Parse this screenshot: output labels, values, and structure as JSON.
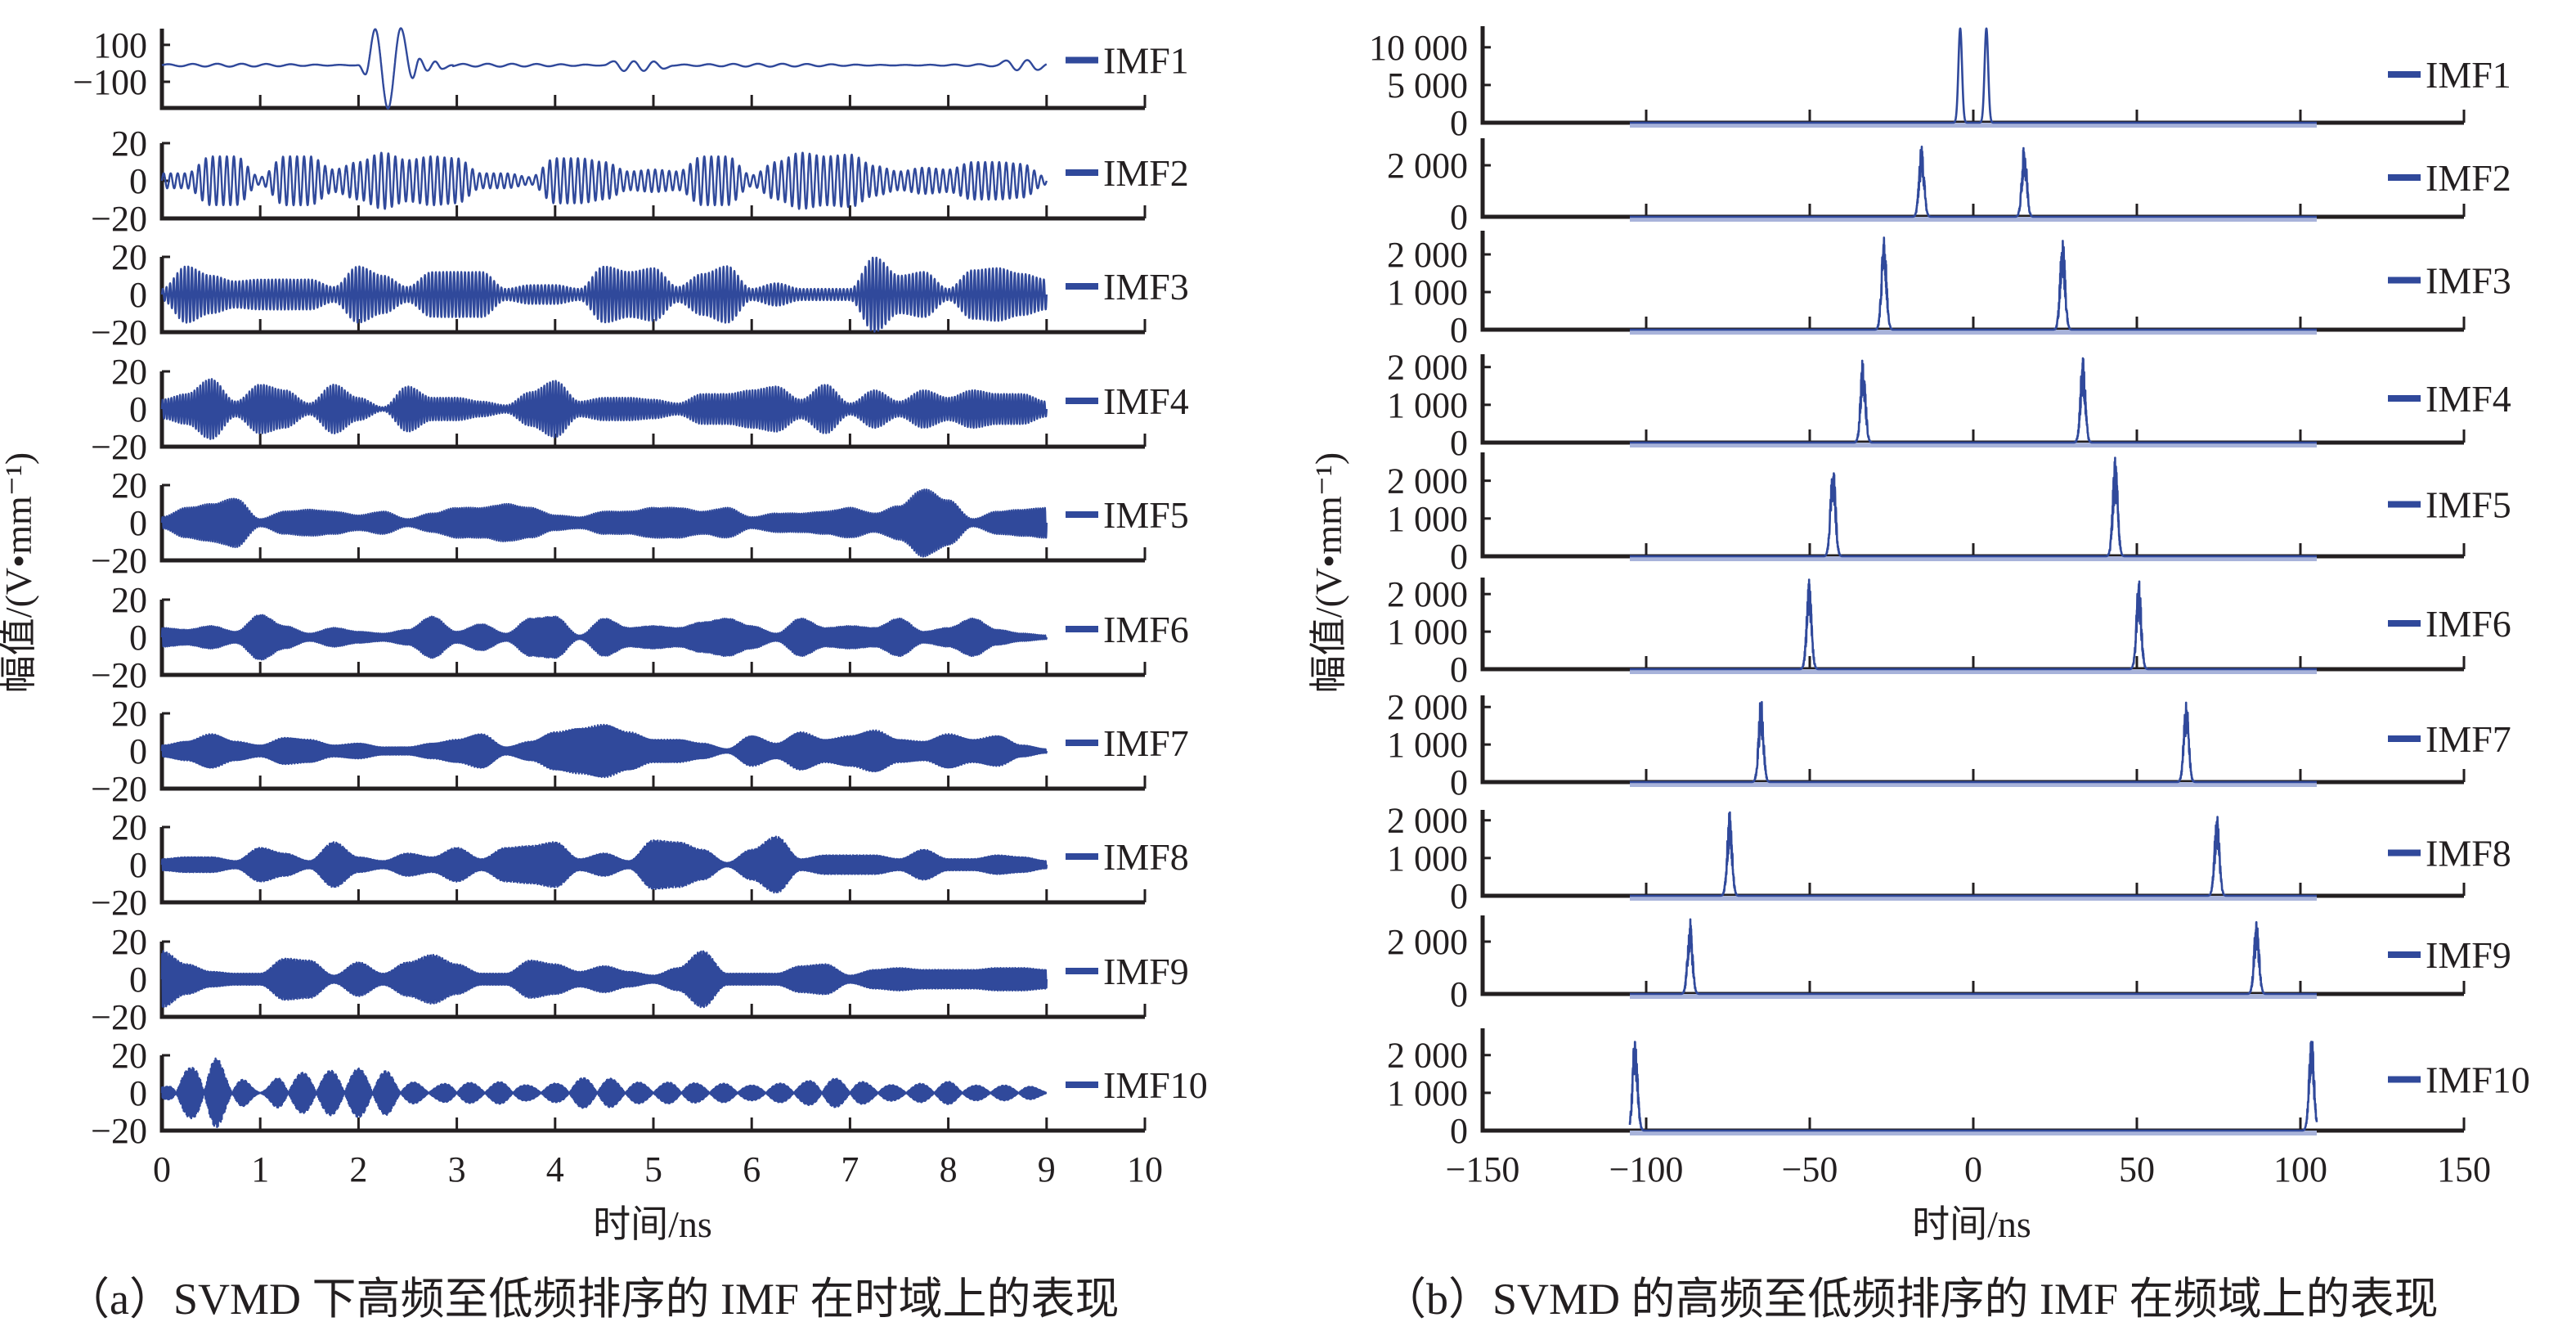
{
  "line_color": "#30499b",
  "band_color": "#a8b3da",
  "chart_data": [
    {
      "type": "line",
      "caption": "（a）SVMD 下高频至低频排序的 IMF 在时域上的表现",
      "xlabel": "时间/ns",
      "ylabel": "幅值/(V•mm⁻¹)",
      "xlim": [
        0,
        10
      ],
      "xticks": [
        {
          "v": 0,
          "label": "0"
        },
        {
          "v": 1,
          "label": "1"
        },
        {
          "v": 2,
          "label": "2"
        },
        {
          "v": 3,
          "label": "3"
        },
        {
          "v": 4,
          "label": "4"
        },
        {
          "v": 5,
          "label": "5"
        },
        {
          "v": 6,
          "label": "6"
        },
        {
          "v": 7,
          "label": "7"
        },
        {
          "v": 8,
          "label": "8"
        },
        {
          "v": 9,
          "label": "9"
        },
        {
          "v": 10,
          "label": "10"
        }
      ],
      "signal_span_ns": [
        0,
        9
      ],
      "envelope_step_ns": 0.25,
      "series": [
        {
          "name": "IMF1",
          "ylim": [
            -242,
            188
          ],
          "yticks": [
            {
              "v": 100,
              "label": "100"
            },
            {
              "v": -100,
              "label": "−100"
            }
          ],
          "ripple_amplitude": 8,
          "ripple_cycles_per_ns": 4,
          "keypoints": [
            [
              0,
              -10
            ],
            [
              2.0,
              -10
            ],
            [
              2.07,
              -60
            ],
            [
              2.17,
              185
            ],
            [
              2.3,
              -245
            ],
            [
              2.43,
              190
            ],
            [
              2.55,
              -80
            ],
            [
              2.62,
              25
            ],
            [
              2.7,
              -40
            ],
            [
              2.78,
              10
            ],
            [
              2.85,
              -30
            ],
            [
              2.95,
              -10
            ],
            [
              4.5,
              -10
            ],
            [
              4.6,
              10
            ],
            [
              4.7,
              -40
            ],
            [
              4.8,
              10
            ],
            [
              4.9,
              -40
            ],
            [
              5.0,
              10
            ],
            [
              5.1,
              -30
            ],
            [
              5.2,
              -10
            ],
            [
              8.5,
              -10
            ],
            [
              8.6,
              10
            ],
            [
              8.7,
              -30
            ],
            [
              8.8,
              10
            ],
            [
              8.9,
              -30
            ],
            [
              9,
              -5
            ]
          ]
        },
        {
          "name": "IMF2",
          "ylim": [
            -20,
            20
          ],
          "yticks": [
            {
              "v": 20,
              "label": "20"
            },
            {
              "v": 0,
              "label": "0"
            },
            {
              "v": -20,
              "label": "−20"
            }
          ],
          "carrier_cycles_per_ns": 14,
          "envelope": [
            4,
            4,
            13,
            13,
            2,
            13,
            13,
            6,
            10,
            15,
            11,
            13,
            12,
            4,
            4,
            2,
            12,
            12,
            10,
            5,
            6,
            5,
            13,
            13,
            3,
            10,
            15,
            13,
            14,
            8,
            5,
            7,
            6,
            10,
            10,
            9,
            2
          ]
        },
        {
          "name": "IMF3",
          "ylim": [
            -20,
            20
          ],
          "yticks": [
            {
              "v": 20,
              "label": "20"
            },
            {
              "v": 0,
              "label": "0"
            },
            {
              "v": -20,
              "label": "−20"
            }
          ],
          "carrier_cycles_per_ns": 27,
          "envelope": [
            3,
            15,
            10,
            7,
            8,
            8,
            8,
            4,
            15,
            10,
            4,
            12,
            12,
            12,
            3,
            5,
            5,
            3,
            15,
            12,
            14,
            4,
            11,
            15,
            3,
            6,
            3,
            3,
            3,
            20,
            10,
            12,
            3,
            13,
            14,
            11,
            8
          ]
        },
        {
          "name": "IMF4",
          "ylim": [
            -20,
            20
          ],
          "yticks": [
            {
              "v": 20,
              "label": "20"
            },
            {
              "v": 0,
              "label": "0"
            },
            {
              "v": -20,
              "label": "−20"
            }
          ],
          "carrier_cycles_per_ns": 34,
          "envelope": [
            5,
            8,
            16,
            4,
            13,
            10,
            3,
            13,
            6,
            1,
            12,
            6,
            6,
            4,
            2,
            9,
            15,
            4,
            6,
            6,
            5,
            3,
            8,
            8,
            10,
            12,
            5,
            13,
            3,
            10,
            4,
            10,
            6,
            10,
            8,
            8,
            4
          ]
        },
        {
          "name": "IMF5",
          "ylim": [
            -20,
            20
          ],
          "yticks": [
            {
              "v": 20,
              "label": "20"
            },
            {
              "v": 0,
              "label": "0"
            },
            {
              "v": -20,
              "label": "−20"
            }
          ],
          "carrier_cycles_per_ns": 44,
          "envelope": [
            3,
            8,
            10,
            13,
            2,
            6,
            7,
            6,
            4,
            6,
            2,
            5,
            8,
            8,
            10,
            8,
            4,
            3,
            6,
            6,
            8,
            8,
            6,
            8,
            3,
            5,
            5,
            6,
            8,
            5,
            9,
            18,
            12,
            2,
            6,
            7,
            8
          ]
        },
        {
          "name": "IMF6",
          "ylim": [
            -20,
            20
          ],
          "yticks": [
            {
              "v": 20,
              "label": "20"
            },
            {
              "v": 0,
              "label": "0"
            },
            {
              "v": -20,
              "label": "−20"
            }
          ],
          "carrier_cycles_per_ns": 50,
          "envelope": [
            5,
            4,
            6,
            3,
            12,
            6,
            2,
            5,
            3,
            2,
            4,
            11,
            3,
            7,
            2,
            10,
            11,
            1,
            10,
            5,
            6,
            5,
            8,
            10,
            6,
            2,
            10,
            5,
            6,
            5,
            10,
            3,
            5,
            10,
            4,
            2,
            1
          ]
        },
        {
          "name": "IMF7",
          "ylim": [
            -20,
            20
          ],
          "yticks": [
            {
              "v": 20,
              "label": "20"
            },
            {
              "v": 0,
              "label": "0"
            },
            {
              "v": -20,
              "label": "−20"
            }
          ],
          "carrier_cycles_per_ns": 65,
          "envelope": [
            3,
            5,
            9,
            5,
            3,
            7,
            6,
            3,
            4,
            2,
            2,
            4,
            6,
            9,
            2,
            5,
            10,
            12,
            14,
            10,
            6,
            6,
            4,
            1,
            8,
            4,
            10,
            6,
            8,
            11,
            6,
            5,
            9,
            6,
            8,
            3,
            1
          ]
        },
        {
          "name": "IMF8",
          "ylim": [
            -20,
            20
          ],
          "yticks": [
            {
              "v": 20,
              "label": "20"
            },
            {
              "v": 0,
              "label": "0"
            },
            {
              "v": -20,
              "label": "−20"
            }
          ],
          "carrier_cycles_per_ns": 74,
          "envelope": [
            3,
            4,
            4,
            2,
            9,
            6,
            2,
            12,
            4,
            2,
            6,
            4,
            9,
            3,
            9,
            10,
            12,
            3,
            6,
            2,
            13,
            12,
            8,
            1,
            8,
            15,
            3,
            5,
            5,
            5,
            3,
            8,
            3,
            3,
            5,
            4,
            2
          ]
        },
        {
          "name": "IMF9",
          "ylim": [
            -20,
            20
          ],
          "yticks": [
            {
              "v": 20,
              "label": "20"
            },
            {
              "v": 0,
              "label": "0"
            },
            {
              "v": -20,
              "label": "−20"
            }
          ],
          "carrier_cycles_per_ns": 87,
          "envelope": [
            15,
            8,
            4,
            3,
            3,
            11,
            10,
            2,
            9,
            3,
            9,
            13,
            8,
            3,
            3,
            10,
            8,
            4,
            7,
            4,
            2,
            6,
            15,
            3,
            3,
            3,
            7,
            8,
            2,
            5,
            6,
            5,
            5,
            5,
            6,
            6,
            5
          ]
        },
        {
          "name": "IMF10",
          "ylim": [
            -20,
            20
          ],
          "yticks": [
            {
              "v": 20,
              "label": "20"
            },
            {
              "v": 0,
              "label": "0"
            },
            {
              "v": -20,
              "label": "−20"
            }
          ],
          "carrier_cycles_per_ns": 103,
          "lobes_per_ns": 3.5,
          "envelope": [
            3,
            13,
            20,
            9,
            2,
            10,
            11,
            12,
            13,
            12,
            6,
            4,
            6,
            5,
            6,
            4,
            5,
            8,
            8,
            6,
            5,
            6,
            5,
            5,
            4,
            5,
            6,
            8,
            7,
            5,
            4,
            5,
            6,
            4,
            4,
            4,
            2
          ]
        }
      ]
    },
    {
      "type": "line",
      "caption": "（b）SVMD 的高频至低频排序的 IMF 在频域上的表现",
      "xlabel": "时间/ns",
      "ylabel": "幅值/(V•mm⁻¹)",
      "xlim": [
        -150,
        150
      ],
      "xticks": [
        {
          "v": -150,
          "label": "−150"
        },
        {
          "v": -100,
          "label": "−100"
        },
        {
          "v": -50,
          "label": "−50"
        },
        {
          "v": 0,
          "label": "0"
        },
        {
          "v": 50,
          "label": "50"
        },
        {
          "v": 100,
          "label": "100"
        },
        {
          "v": 150,
          "label": "150"
        }
      ],
      "data_span": [
        -105,
        105
      ],
      "series": [
        {
          "name": "IMF1",
          "ylim": [
            0,
            12800
          ],
          "yticks": [
            {
              "v": 0,
              "label": "0"
            },
            {
              "v": 5000,
              "label": "5 000"
            },
            {
              "v": 10000,
              "label": "10 000"
            }
          ],
          "peaks": [
            {
              "x": -4,
              "y": 12500
            },
            {
              "x": 4,
              "y": 12500
            }
          ]
        },
        {
          "name": "IMF2",
          "ylim": [
            0,
            3050
          ],
          "yticks": [
            {
              "v": 0,
              "label": "0"
            },
            {
              "v": 2000,
              "label": "2 000"
            }
          ],
          "peaks": [
            {
              "x": -15.8,
              "y": 2950
            },
            {
              "x": 15.6,
              "y": 2950
            }
          ]
        },
        {
          "name": "IMF3",
          "ylim": [
            0,
            2630
          ],
          "yticks": [
            {
              "v": 0,
              "label": "0"
            },
            {
              "v": 1000,
              "label": "1 000"
            },
            {
              "v": 2000,
              "label": "2 000"
            }
          ],
          "peaks": [
            {
              "x": -27.3,
              "y": 2550
            },
            {
              "x": 27.3,
              "y": 2550
            }
          ]
        },
        {
          "name": "IMF4",
          "ylim": [
            0,
            2340
          ],
          "yticks": [
            {
              "v": 0,
              "label": "0"
            },
            {
              "v": 1000,
              "label": "1 000"
            },
            {
              "v": 2000,
              "label": "2 000"
            }
          ],
          "peaks": [
            {
              "x": -33.7,
              "y": 2300
            },
            {
              "x": 33.5,
              "y": 2300
            }
          ]
        },
        {
          "name": "IMF5",
          "ylim": [
            0,
            2750
          ],
          "yticks": [
            {
              "v": 0,
              "label": "0"
            },
            {
              "v": 1000,
              "label": "1 000"
            },
            {
              "v": 2000,
              "label": "2 000"
            }
          ],
          "peaks": [
            {
              "x": -42.9,
              "y": 2700
            },
            {
              "x": 43.4,
              "y": 2700
            }
          ]
        },
        {
          "name": "IMF6",
          "ylim": [
            0,
            2440
          ],
          "yticks": [
            {
              "v": 0,
              "label": "0"
            },
            {
              "v": 1000,
              "label": "1 000"
            },
            {
              "v": 2000,
              "label": "2 000"
            }
          ],
          "peaks": [
            {
              "x": -50.2,
              "y": 2400
            },
            {
              "x": 50.6,
              "y": 2400
            }
          ]
        },
        {
          "name": "IMF7",
          "ylim": [
            0,
            2310
          ],
          "yticks": [
            {
              "v": 0,
              "label": "0"
            },
            {
              "v": 1000,
              "label": "1 000"
            },
            {
              "v": 2000,
              "label": "2 000"
            }
          ],
          "peaks": [
            {
              "x": -64.9,
              "y": 2280
            },
            {
              "x": 65.1,
              "y": 2280
            }
          ]
        },
        {
          "name": "IMF8",
          "ylim": [
            0,
            2275
          ],
          "yticks": [
            {
              "v": 0,
              "label": "0"
            },
            {
              "v": 1000,
              "label": "1 000"
            },
            {
              "v": 2000,
              "label": "2 000"
            }
          ],
          "peaks": [
            {
              "x": -74.5,
              "y": 2250
            },
            {
              "x": 74.5,
              "y": 2250
            }
          ]
        },
        {
          "name": "IMF9",
          "ylim": [
            0,
            3000
          ],
          "yticks": [
            {
              "v": 0,
              "label": "0"
            },
            {
              "v": 2000,
              "label": "2 000"
            }
          ],
          "peaks": [
            {
              "x": -86.6,
              "y": 2950
            },
            {
              "x": 86.6,
              "y": 2950
            }
          ]
        },
        {
          "name": "IMF10",
          "ylim": [
            0,
            2710
          ],
          "yticks": [
            {
              "v": 0,
              "label": "0"
            },
            {
              "v": 1000,
              "label": "1 000"
            },
            {
              "v": 2000,
              "label": "2 000"
            }
          ],
          "peaks": [
            {
              "x": -103.4,
              "y": 2650
            },
            {
              "x": 103.4,
              "y": 2650
            }
          ]
        }
      ]
    }
  ]
}
